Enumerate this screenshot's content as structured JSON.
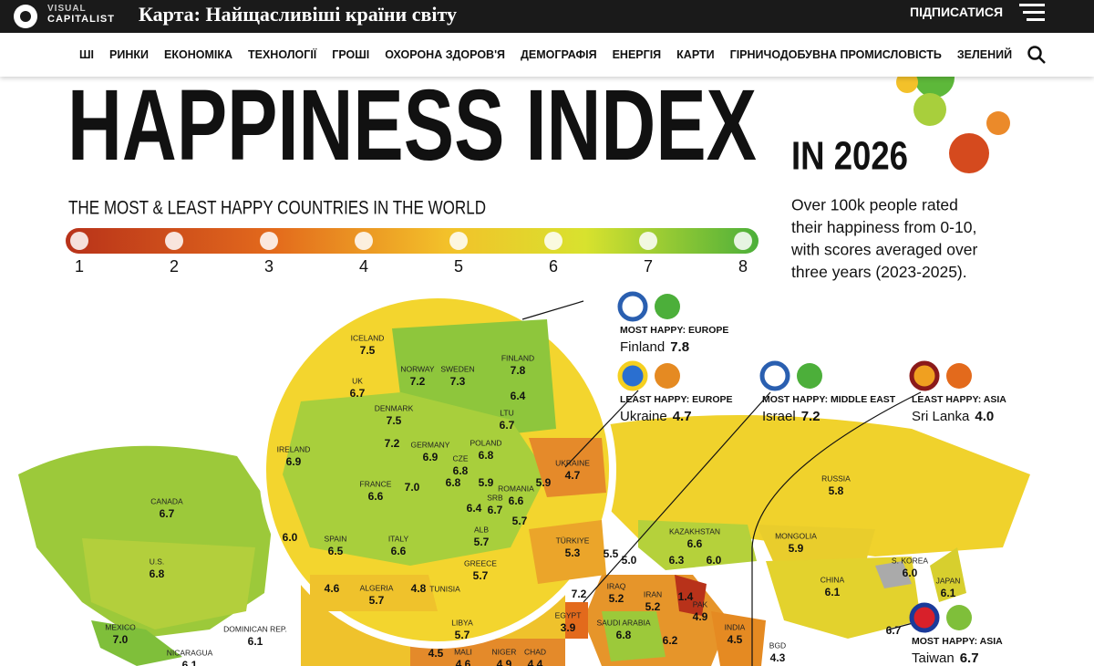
{
  "header": {
    "logo_top": "VISUAL",
    "logo_bottom": "CAPITALIST",
    "title": "Карта: Найщасливіші країни світу",
    "subscribe": "ПІДПИСАТИСЯ"
  },
  "nav": [
    "ШІ",
    "РИНКИ",
    "ЕКОНОМІКА",
    "ТЕХНОЛОГІЇ",
    "ГРОШІ",
    "ОХОРОНА ЗДОРОВ'Я",
    "ДЕМОГРАФІЯ",
    "ЕНЕРГІЯ",
    "КАРТИ",
    "ГІРНИЧОДОБУВНА ПРОМИСЛОВІСТЬ",
    "ЗЕЛЕНИЙ"
  ],
  "infographic": {
    "title": "HAPPINESS INDEX",
    "year": "IN 2026",
    "subtitle": "THE MOST & LEAST HAPPY COUNTRIES IN THE WORLD",
    "scale_ticks": [
      1,
      2,
      3,
      4,
      5,
      6,
      7,
      8
    ],
    "description": [
      "Over 100k people rated",
      "their happiness from 0-10,",
      "with scores averaged over",
      "three years (2023-2025)."
    ],
    "callouts": [
      {
        "label": "MOST HAPPY: EUROPE",
        "country": "Finland",
        "score": "7.8"
      },
      {
        "label": "LEAST HAPPY: EUROPE",
        "country": "Ukraine",
        "score": "4.7"
      },
      {
        "label": "MOST HAPPY: MIDDLE EAST",
        "country": "Israel",
        "score": "7.2"
      },
      {
        "label": "LEAST HAPPY: ASIA",
        "country": "Sri Lanka",
        "score": "4.0"
      },
      {
        "label": "MOST HAPPY: ASIA",
        "country": "Taiwan",
        "score": "6.7"
      }
    ],
    "countries": [
      {
        "name": "ICELAND",
        "score": "7.5"
      },
      {
        "name": "UK",
        "score": "6.7"
      },
      {
        "name": "NORWAY",
        "score": "7.2"
      },
      {
        "name": "SWEDEN",
        "score": "7.3"
      },
      {
        "name": "FINLAND",
        "score": "7.8"
      },
      {
        "name": "DENMARK",
        "score": "7.5"
      },
      {
        "score": "6.4"
      },
      {
        "name": "LTU",
        "score": "6.7"
      },
      {
        "name": "IRELAND",
        "score": "6.9"
      },
      {
        "name": "GERMANY",
        "score": "6.9"
      },
      {
        "score": "7.2"
      },
      {
        "name": "POLAND",
        "score": "6.8"
      },
      {
        "name": "UKRAINE",
        "score": "4.7"
      },
      {
        "name": "CZE",
        "score": "6.8"
      },
      {
        "name": "FRANCE",
        "score": "6.6"
      },
      {
        "score": "7.0"
      },
      {
        "score": "6.8"
      },
      {
        "score": "5.9"
      },
      {
        "name": "ROMANIA",
        "score": "6.6"
      },
      {
        "score": "5.9"
      },
      {
        "name": "SRB",
        "score": "6.7"
      },
      {
        "score": "6.4"
      },
      {
        "score": "5.7"
      },
      {
        "name": "SPAIN",
        "score": "6.5"
      },
      {
        "score": "6.0"
      },
      {
        "name": "ITALY",
        "score": "6.6"
      },
      {
        "name": "ALB",
        "score": "5.7"
      },
      {
        "name": "TÜRKIYE",
        "score": "5.3"
      },
      {
        "name": "GREECE",
        "score": "5.7"
      },
      {
        "name": "ALGERIA",
        "score": "5.7"
      },
      {
        "score": "4.6"
      },
      {
        "score": "4.8"
      },
      {
        "name": "TUNISIA"
      },
      {
        "name": "LIBYA",
        "score": "5.7"
      },
      {
        "name": "CANADA",
        "score": "6.7"
      },
      {
        "name": "U.S.",
        "score": "6.8"
      },
      {
        "name": "MEXICO",
        "score": "7.0"
      },
      {
        "name": "DOMINICAN REP.",
        "score": "6.1"
      },
      {
        "name": "NICARAGUA",
        "score": "6.1"
      },
      {
        "name": "RUSSIA",
        "score": "5.8"
      },
      {
        "name": "KAZAKHSTAN",
        "score": "6.6"
      },
      {
        "name": "MONGOLIA",
        "score": "5.9"
      },
      {
        "score": "5.5"
      },
      {
        "score": "5.0"
      },
      {
        "score": "6.3"
      },
      {
        "score": "6.0"
      },
      {
        "name": "S. KOREA",
        "score": "6.0"
      },
      {
        "name": "JAPAN",
        "score": "6.1"
      },
      {
        "name": "CHINA",
        "score": "6.1"
      },
      {
        "name": "IRAQ",
        "score": "5.2"
      },
      {
        "name": "IRAN",
        "score": "5.2"
      },
      {
        "score": "1.4"
      },
      {
        "name": "PAK",
        "score": "4.9"
      },
      {
        "name": "EGYPT",
        "score": "3.9"
      },
      {
        "score": "7.2"
      },
      {
        "name": "SAUDI ARABIA",
        "score": "6.8"
      },
      {
        "name": "INDIA",
        "score": "4.5"
      },
      {
        "name": "BGD",
        "score": "4.3"
      },
      {
        "score": "6.2"
      },
      {
        "score": "6.7"
      },
      {
        "name": "MALI",
        "score": "4.6"
      },
      {
        "name": "NIGER",
        "score": "4.9"
      },
      {
        "name": "CHAD",
        "score": "4.4"
      },
      {
        "score": "4.5"
      }
    ]
  }
}
